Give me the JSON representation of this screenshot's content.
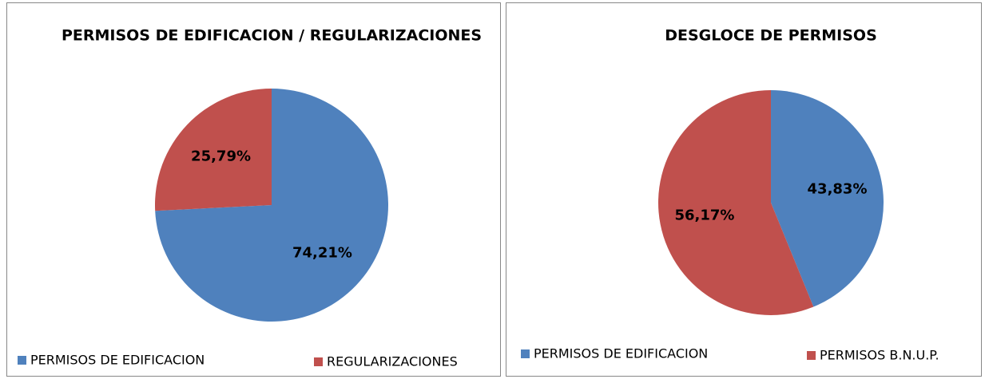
{
  "chart_data": [
    {
      "type": "pie",
      "title": "PERMISOS DE EDIFICACION / REGULARIZACIONES",
      "categories": [
        "PERMISOS DE EDIFICACION",
        "REGULARIZACIONES"
      ],
      "values": [
        74.21,
        25.79
      ],
      "value_labels": [
        "74,21%",
        "25,79%"
      ],
      "colors": [
        "#4f81bd",
        "#c0504d"
      ],
      "legend": "bottom"
    },
    {
      "type": "pie",
      "title": "DESGLOCE DE PERMISOS",
      "categories": [
        "PERMISOS DE EDIFICACION",
        "PERMISOS B.N.U.P."
      ],
      "values": [
        43.83,
        56.17
      ],
      "value_labels": [
        "43,83%",
        "56,17%"
      ],
      "colors": [
        "#4f81bd",
        "#c0504d"
      ],
      "legend": "bottom"
    }
  ]
}
